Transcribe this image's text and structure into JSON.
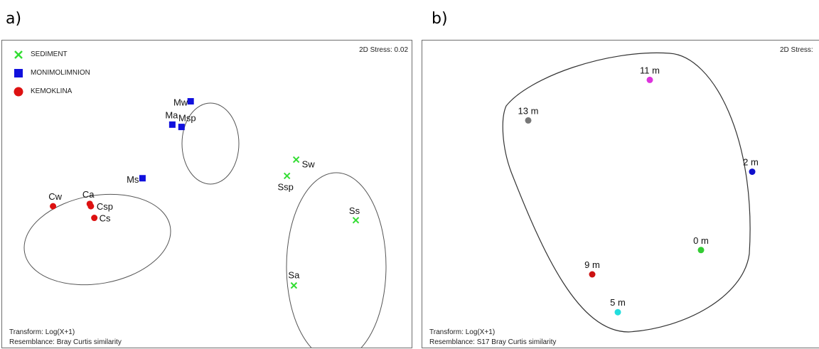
{
  "panels": [
    {
      "letter": "a)",
      "stress": "2D Stress: 0.02",
      "footer": [
        "Transform: Log(X+1)",
        "Resemblance: Bray Curtis similarity"
      ]
    },
    {
      "letter": "b)",
      "stress": "2D Stress:",
      "footer": [
        "Transform: Log(X+1)",
        "Resemblance: S17 Bray Curtis similarity"
      ]
    }
  ],
  "chart_data": [
    {
      "type": "scatter",
      "title": "",
      "xlabel": "",
      "ylabel": "",
      "legend_position": "top-left",
      "legend": [
        {
          "label": "SEDIMENT",
          "marker": "x",
          "color": "#33dd33"
        },
        {
          "label": "MONIMOLIMNION",
          "marker": "square",
          "color": "#1010dd"
        },
        {
          "label": "KEMOKLINA",
          "marker": "circle",
          "color": "#dd1111"
        }
      ],
      "series": [
        {
          "name": "SEDIMENT",
          "color": "#33dd33",
          "marker": "x",
          "points": [
            {
              "label": "Sw",
              "x": 0.63,
              "y": 0.66
            },
            {
              "label": "Ssp",
              "x": 0.59,
              "y": 0.59
            },
            {
              "label": "Ss",
              "x": 0.89,
              "y": 0.4
            },
            {
              "label": "Sa",
              "x": 0.62,
              "y": 0.12
            }
          ]
        },
        {
          "name": "MONIMOLIMNION",
          "color": "#1010dd",
          "marker": "square",
          "points": [
            {
              "label": "Mw",
              "x": 0.17,
              "y": 0.91
            },
            {
              "label": "Ma",
              "x": 0.09,
              "y": 0.81
            },
            {
              "label": "Msp",
              "x": 0.13,
              "y": 0.8
            },
            {
              "label": "Ms",
              "x": -0.04,
              "y": 0.58
            }
          ]
        },
        {
          "name": "KEMOKLINA",
          "color": "#dd1111",
          "marker": "circle",
          "points": [
            {
              "label": "Cw",
              "x": -0.43,
              "y": 0.46
            },
            {
              "label": "Ca",
              "x": -0.27,
              "y": 0.47
            },
            {
              "label": "Csp",
              "x": -0.265,
              "y": 0.46
            },
            {
              "label": "Cs",
              "x": -0.25,
              "y": 0.41
            }
          ]
        }
      ],
      "xlim": [
        -0.5,
        1.0
      ],
      "ylim": [
        0,
        1.0
      ],
      "grid": false
    },
    {
      "type": "scatter",
      "title": "",
      "xlabel": "",
      "ylabel": "",
      "points": [
        {
          "label": "11 m",
          "x": 0.6,
          "y": 0.92,
          "color": "#dd33dd"
        },
        {
          "label": "13 m",
          "x": 0.22,
          "y": 0.77,
          "color": "#777777"
        },
        {
          "label": "2 m",
          "x": 0.92,
          "y": 0.58,
          "color": "#1010cc"
        },
        {
          "label": "0 m",
          "x": 0.76,
          "y": 0.29,
          "color": "#33cc33"
        },
        {
          "label": "9 m",
          "x": 0.42,
          "y": 0.2,
          "color": "#cc1111"
        },
        {
          "label": "5 m",
          "x": 0.5,
          "y": 0.06,
          "color": "#22dddd"
        }
      ],
      "xlim": [
        0,
        1.0
      ],
      "ylim": [
        0,
        1.0
      ],
      "grid": false
    }
  ]
}
